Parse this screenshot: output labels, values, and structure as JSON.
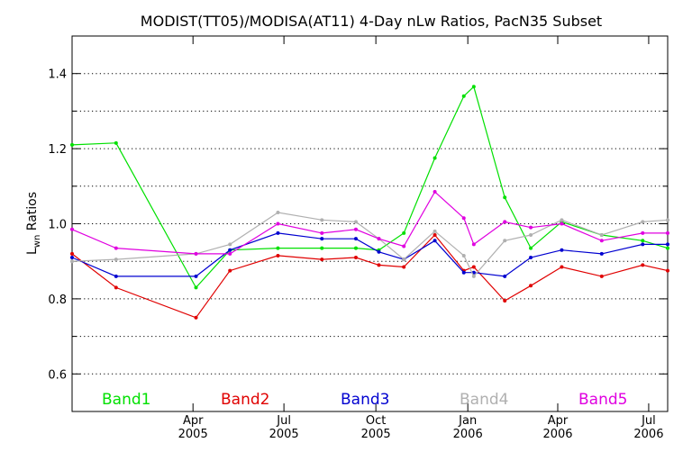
{
  "chart_data": {
    "type": "line",
    "title": "MODIST(TT05)/MODISA(AT11) 4-Day nLw Ratios, PacN35 Subset",
    "ylabel_main": "L",
    "ylabel_sub": "wn",
    "ylabel_rest": " Ratios",
    "xlim": [
      "2004-12-01",
      "2006-07-20"
    ],
    "ylim": [
      0.5,
      1.5
    ],
    "y_ticks": [
      0.6,
      0.8,
      1.0,
      1.2,
      1.4
    ],
    "y_tick_labels": [
      "0.6",
      "0.8",
      "1.0",
      "1.2",
      "1.4"
    ],
    "y_minor_ticks": [
      0.5,
      0.7,
      0.9,
      1.1,
      1.3,
      1.5
    ],
    "grid": true,
    "x_ticks": [
      {
        "date": "2005-04-01",
        "month": "Apr",
        "year": "2005"
      },
      {
        "date": "2005-07-01",
        "month": "Jul",
        "year": "2005"
      },
      {
        "date": "2005-10-01",
        "month": "Oct",
        "year": "2005"
      },
      {
        "date": "2006-01-01",
        "month": "Jan",
        "year": "2006"
      },
      {
        "date": "2006-04-01",
        "month": "Apr",
        "year": "2006"
      },
      {
        "date": "2006-07-01",
        "month": "Jul",
        "year": "2006"
      }
    ],
    "legend_placement": "bottom",
    "series": [
      {
        "name": "Band1",
        "color": "#00e000",
        "x": [
          "2004-12-01",
          "2005-01-14",
          "2005-04-04",
          "2005-05-08",
          "2005-06-25",
          "2005-08-08",
          "2005-09-11",
          "2005-10-04",
          "2005-10-29",
          "2005-11-29",
          "2005-12-28",
          "2006-01-07",
          "2006-02-07",
          "2006-03-05",
          "2006-04-05",
          "2006-05-15",
          "2006-06-25",
          "2006-07-20"
        ],
        "y": [
          1.21,
          1.215,
          0.83,
          0.93,
          0.935,
          0.935,
          0.935,
          0.93,
          0.975,
          1.175,
          1.34,
          1.365,
          1.07,
          0.935,
          1.005,
          0.97,
          0.955,
          0.935
        ]
      },
      {
        "name": "Band2",
        "color": "#e00000",
        "x": [
          "2004-12-01",
          "2005-01-14",
          "2005-04-04",
          "2005-05-08",
          "2005-06-25",
          "2005-08-08",
          "2005-09-11",
          "2005-10-04",
          "2005-10-29",
          "2005-11-29",
          "2005-12-28",
          "2006-01-07",
          "2006-02-07",
          "2006-03-05",
          "2006-04-05",
          "2006-05-15",
          "2006-06-25",
          "2006-07-20"
        ],
        "y": [
          0.92,
          0.83,
          0.75,
          0.875,
          0.915,
          0.905,
          0.91,
          0.89,
          0.885,
          0.97,
          0.875,
          0.885,
          0.795,
          0.835,
          0.885,
          0.86,
          0.89,
          0.875
        ]
      },
      {
        "name": "Band3",
        "color": "#0000d0",
        "x": [
          "2004-12-01",
          "2005-01-14",
          "2005-04-04",
          "2005-05-08",
          "2005-06-25",
          "2005-08-08",
          "2005-09-11",
          "2005-10-04",
          "2005-10-29",
          "2005-11-29",
          "2005-12-28",
          "2006-01-07",
          "2006-02-07",
          "2006-03-05",
          "2006-04-05",
          "2006-05-15",
          "2006-06-25",
          "2006-07-20"
        ],
        "y": [
          0.91,
          0.86,
          0.86,
          0.93,
          0.975,
          0.96,
          0.96,
          0.925,
          0.905,
          0.955,
          0.87,
          0.87,
          0.86,
          0.91,
          0.93,
          0.92,
          0.945,
          0.945
        ]
      },
      {
        "name": "Band4",
        "color": "#b0b0b0",
        "x": [
          "2004-12-01",
          "2005-01-14",
          "2005-04-04",
          "2005-05-08",
          "2005-06-25",
          "2005-08-08",
          "2005-09-11",
          "2005-10-04",
          "2005-10-29",
          "2005-11-29",
          "2005-12-28",
          "2006-01-07",
          "2006-02-07",
          "2006-03-05",
          "2006-04-05",
          "2006-05-15",
          "2006-06-25",
          "2006-07-20"
        ],
        "y": [
          0.9,
          0.905,
          0.92,
          0.945,
          1.03,
          1.01,
          1.005,
          0.96,
          0.905,
          0.98,
          0.915,
          0.86,
          0.955,
          0.97,
          1.01,
          0.97,
          1.005,
          1.01
        ]
      },
      {
        "name": "Band5",
        "color": "#e000e0",
        "x": [
          "2004-12-01",
          "2005-01-14",
          "2005-04-04",
          "2005-05-08",
          "2005-06-25",
          "2005-08-08",
          "2005-09-11",
          "2005-10-04",
          "2005-10-29",
          "2005-11-29",
          "2005-12-28",
          "2006-01-07",
          "2006-02-07",
          "2006-03-05",
          "2006-04-05",
          "2006-05-15",
          "2006-06-25",
          "2006-07-20"
        ],
        "y": [
          0.985,
          0.935,
          0.92,
          0.92,
          1.0,
          0.975,
          0.985,
          0.96,
          0.94,
          1.085,
          1.015,
          0.945,
          1.005,
          0.99,
          1.0,
          0.955,
          0.975,
          0.975
        ]
      }
    ]
  }
}
